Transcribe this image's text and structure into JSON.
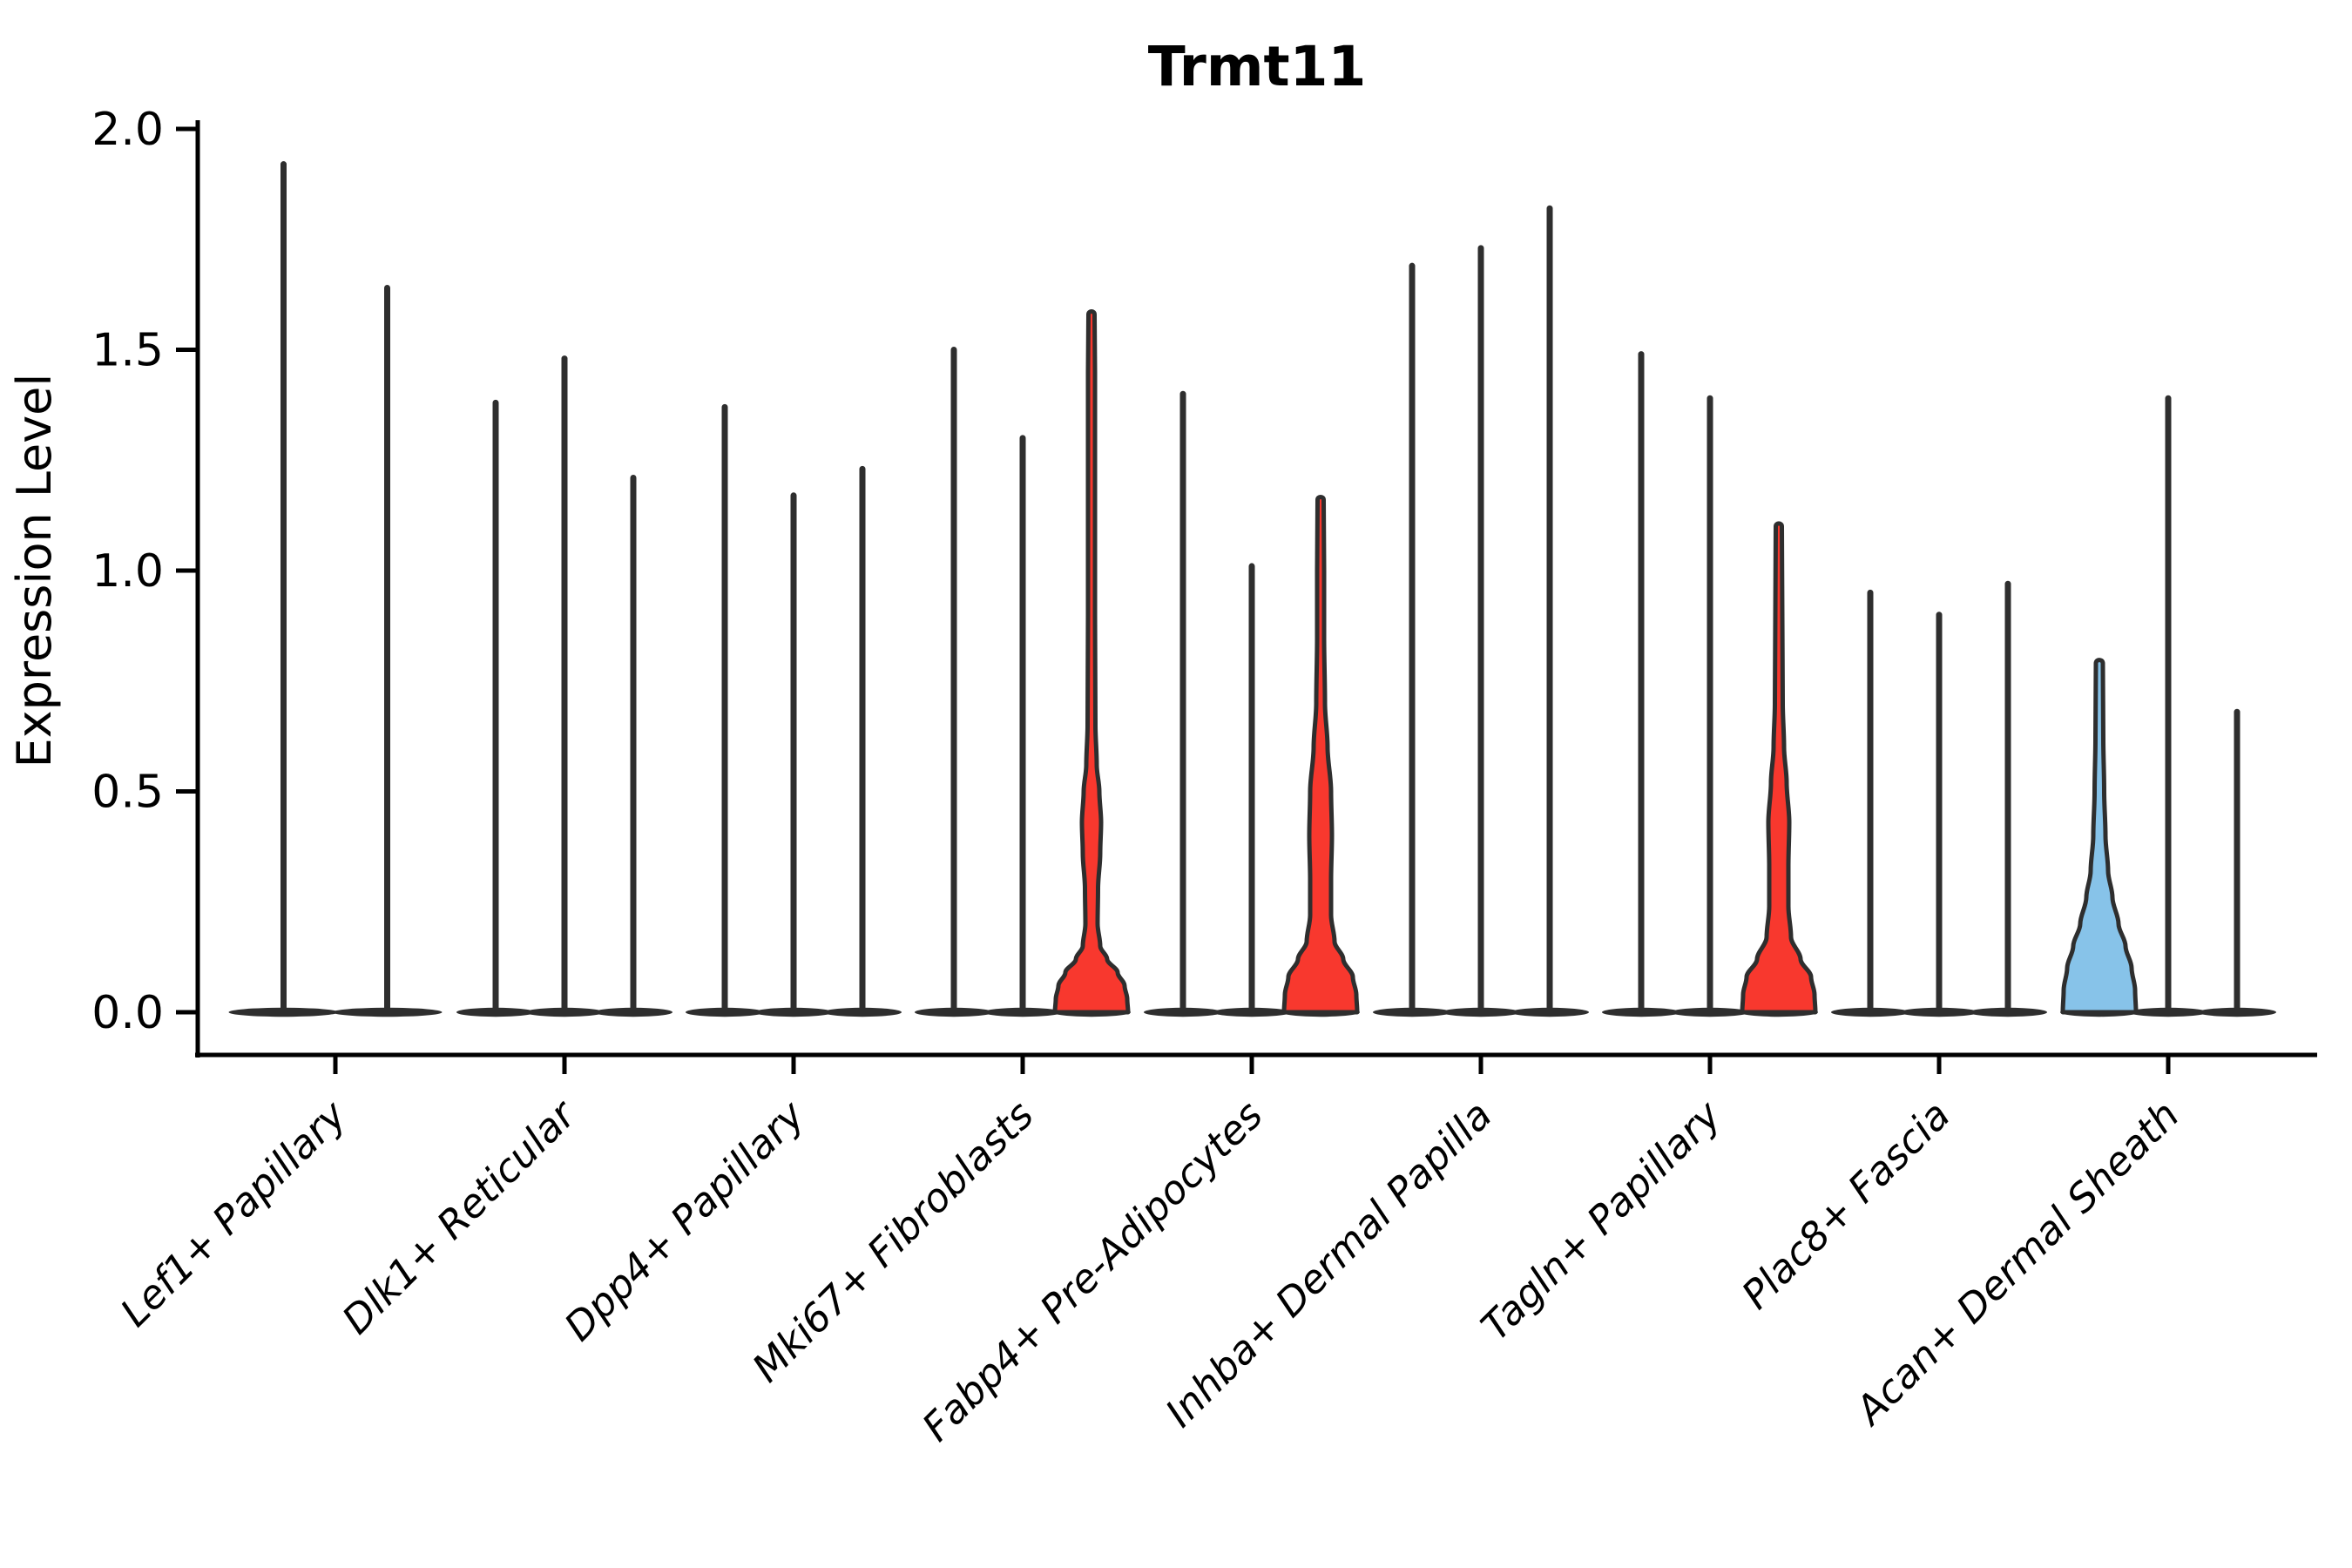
{
  "chart_data": {
    "type": "violin",
    "title": "Trmt11",
    "ylabel": "Expression Level",
    "xlabel": "",
    "ylim": [
      0.0,
      2.0
    ],
    "yticks": [
      "0.0",
      "0.5",
      "1.0",
      "1.5",
      "2.0"
    ],
    "grid": false,
    "legend_position": "none",
    "colors": {
      "edge": "#2e2e2e",
      "spine": "#000000",
      "highlight_red": "#f8382e",
      "highlight_blue": "#87c3e9",
      "text": "#000000",
      "background": "#ffffff"
    },
    "categories": [
      "Lef1+ Papillary",
      "Dlk1+ Reticular",
      "Dpp4+ Papillary",
      "Mki67+ Fibroblasts",
      "Fabp4+ Pre-Adipocytes",
      "Inhba+ Dermal Papilla",
      "Tagln+ Papillary",
      "Plac8+ Fascia",
      "Acan+ Dermal Sheath"
    ],
    "groups": [
      {
        "category": "Lef1+ Papillary",
        "violins": [
          {
            "max": 1.92
          },
          {
            "max": 1.64
          }
        ]
      },
      {
        "category": "Dlk1+ Reticular",
        "violins": [
          {
            "max": 1.38
          },
          {
            "max": 1.48
          },
          {
            "max": 1.21
          }
        ]
      },
      {
        "category": "Dpp4+ Papillary",
        "violins": [
          {
            "max": 1.37
          },
          {
            "max": 1.17
          },
          {
            "max": 1.23
          }
        ]
      },
      {
        "category": "Mki67+ Fibroblasts",
        "violins": [
          {
            "max": 1.5
          },
          {
            "max": 1.3
          },
          {
            "max": 1.58,
            "fill": "red",
            "profile": [
              [
                0.0,
                42
              ],
              [
                0.03,
                41
              ],
              [
                0.06,
                38
              ],
              [
                0.09,
                30
              ],
              [
                0.12,
                18
              ],
              [
                0.15,
                10
              ],
              [
                0.2,
                7
              ],
              [
                0.28,
                7.5
              ],
              [
                0.36,
                10
              ],
              [
                0.43,
                11
              ],
              [
                0.5,
                9
              ],
              [
                0.56,
                6
              ],
              [
                0.65,
                4.5
              ],
              [
                0.9,
                4
              ],
              [
                1.2,
                4
              ],
              [
                1.45,
                4
              ],
              [
                1.58,
                3.5
              ]
            ]
          }
        ]
      },
      {
        "category": "Fabp4+ Pre-Adipocytes",
        "violins": [
          {
            "max": 1.4
          },
          {
            "max": 1.01
          },
          {
            "max": 1.16,
            "fill": "red",
            "profile": [
              [
                0.0,
                42
              ],
              [
                0.04,
                41
              ],
              [
                0.08,
                37
              ],
              [
                0.12,
                26
              ],
              [
                0.16,
                16
              ],
              [
                0.22,
                12
              ],
              [
                0.3,
                12
              ],
              [
                0.4,
                13
              ],
              [
                0.5,
                12
              ],
              [
                0.6,
                8
              ],
              [
                0.7,
                5
              ],
              [
                0.85,
                4
              ],
              [
                1.0,
                4
              ],
              [
                1.16,
                3.5
              ]
            ]
          }
        ]
      },
      {
        "category": "Inhba+ Dermal Papilla",
        "violins": [
          {
            "max": 1.69
          },
          {
            "max": 1.73
          },
          {
            "max": 1.82
          }
        ]
      },
      {
        "category": "Tagln+ Papillary",
        "violins": [
          {
            "max": 1.49
          },
          {
            "max": 1.39
          },
          {
            "max": 1.1,
            "fill": "red",
            "profile": [
              [
                0.0,
                42
              ],
              [
                0.04,
                41
              ],
              [
                0.08,
                37
              ],
              [
                0.12,
                25
              ],
              [
                0.17,
                14
              ],
              [
                0.24,
                11
              ],
              [
                0.33,
                11
              ],
              [
                0.43,
                12
              ],
              [
                0.52,
                9
              ],
              [
                0.6,
                6
              ],
              [
                0.7,
                4.5
              ],
              [
                0.9,
                4
              ],
              [
                1.1,
                3.5
              ]
            ]
          }
        ]
      },
      {
        "category": "Plac8+ Fascia",
        "violins": [
          {
            "max": 0.95
          },
          {
            "max": 0.9
          },
          {
            "max": 0.97
          }
        ]
      },
      {
        "category": "Acan+ Dermal Sheath",
        "violins": [
          {
            "max": 0.79,
            "fill": "blue",
            "profile": [
              [
                0.0,
                42
              ],
              [
                0.05,
                41
              ],
              [
                0.1,
                37
              ],
              [
                0.15,
                30
              ],
              [
                0.2,
                22
              ],
              [
                0.26,
                15
              ],
              [
                0.32,
                10
              ],
              [
                0.4,
                7
              ],
              [
                0.5,
                5.5
              ],
              [
                0.62,
                4.5
              ],
              [
                0.79,
                4
              ]
            ]
          },
          {
            "max": 1.39
          },
          {
            "max": 0.68
          }
        ]
      }
    ]
  }
}
